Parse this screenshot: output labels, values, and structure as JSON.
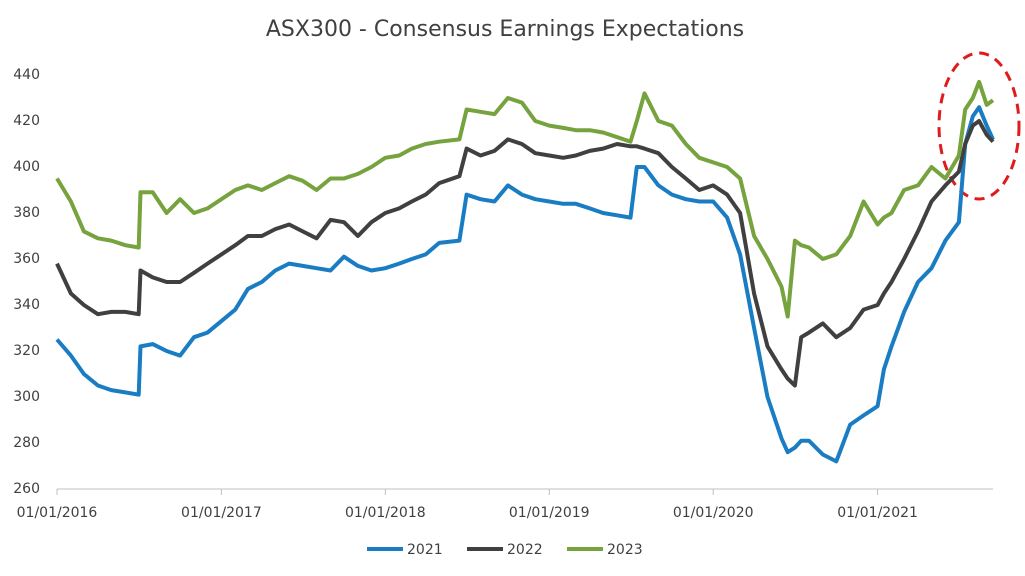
{
  "chart_data": {
    "type": "line",
    "title": "ASX300 - Consensus Earnings Expectations",
    "x": [
      "01/01/2016",
      "01/02/2016",
      "01/03/2016",
      "01/04/2016",
      "01/05/2016",
      "01/06/2016",
      "01/07/2016",
      "05/07/2016",
      "01/08/2016",
      "01/09/2016",
      "01/10/2016",
      "01/11/2016",
      "01/12/2016",
      "01/01/2017",
      "01/02/2017",
      "01/03/2017",
      "01/04/2017",
      "01/05/2017",
      "01/06/2017",
      "01/07/2017",
      "01/08/2017",
      "01/09/2017",
      "01/10/2017",
      "01/11/2017",
      "01/12/2017",
      "01/01/2018",
      "01/02/2018",
      "01/03/2018",
      "01/04/2018",
      "01/05/2018",
      "15/06/2018",
      "01/07/2018",
      "01/08/2018",
      "01/09/2018",
      "01/10/2018",
      "01/11/2018",
      "01/12/2018",
      "01/01/2019",
      "01/02/2019",
      "01/03/2019",
      "01/04/2019",
      "01/05/2019",
      "01/06/2019",
      "01/07/2019",
      "15/07/2019",
      "01/08/2019",
      "01/09/2019",
      "01/10/2019",
      "01/11/2019",
      "01/12/2019",
      "01/01/2020",
      "01/02/2020",
      "01/03/2020",
      "01/04/2020",
      "01/05/2020",
      "01/06/2020",
      "15/06/2020",
      "01/07/2020",
      "15/07/2020",
      "01/08/2020",
      "01/09/2020",
      "01/10/2020",
      "01/11/2020",
      "01/12/2020",
      "01/01/2021",
      "15/01/2021",
      "01/02/2021",
      "01/03/2021",
      "01/04/2021",
      "01/05/2021",
      "01/06/2021",
      "01/07/2021",
      "15/07/2021",
      "01/08/2021",
      "15/08/2021",
      "01/09/2021",
      "15/09/2021"
    ],
    "series": [
      {
        "name": "2021",
        "color": "#1a7dc4",
        "values": [
          325,
          318,
          310,
          305,
          303,
          302,
          301,
          322,
          323,
          320,
          318,
          326,
          328,
          333,
          338,
          347,
          350,
          355,
          358,
          357,
          356,
          355,
          361,
          357,
          355,
          356,
          358,
          360,
          362,
          367,
          368,
          388,
          386,
          385,
          392,
          388,
          386,
          385,
          384,
          384,
          382,
          380,
          379,
          378,
          400,
          400,
          392,
          388,
          386,
          385,
          385,
          378,
          362,
          330,
          300,
          282,
          276,
          278,
          281,
          281,
          275,
          272,
          288,
          292,
          296,
          312,
          322,
          337,
          350,
          356,
          368,
          376,
          410,
          422,
          426,
          418,
          412
        ]
      },
      {
        "name": "2022",
        "color": "#404040",
        "values": [
          358,
          345,
          340,
          336,
          337,
          337,
          336,
          355,
          352,
          350,
          350,
          354,
          358,
          362,
          366,
          370,
          370,
          373,
          375,
          372,
          369,
          377,
          376,
          370,
          376,
          380,
          382,
          385,
          388,
          393,
          396,
          408,
          405,
          407,
          412,
          410,
          406,
          405,
          404,
          405,
          407,
          408,
          410,
          409,
          409,
          408,
          406,
          400,
          395,
          390,
          392,
          388,
          380,
          345,
          322,
          312,
          308,
          305,
          326,
          328,
          332,
          326,
          330,
          338,
          340,
          345,
          350,
          360,
          372,
          385,
          392,
          398,
          410,
          418,
          420,
          414,
          411
        ]
      },
      {
        "name": "2023",
        "color": "#76a33e",
        "values": [
          395,
          385,
          372,
          369,
          368,
          366,
          365,
          389,
          389,
          380,
          386,
          380,
          382,
          386,
          390,
          392,
          390,
          393,
          396,
          394,
          390,
          395,
          395,
          397,
          400,
          404,
          405,
          408,
          410,
          411,
          412,
          425,
          424,
          423,
          430,
          428,
          420,
          418,
          417,
          416,
          416,
          415,
          413,
          411,
          420,
          432,
          420,
          418,
          410,
          404,
          402,
          400,
          395,
          370,
          360,
          348,
          335,
          368,
          366,
          365,
          360,
          362,
          370,
          385,
          375,
          378,
          380,
          390,
          392,
          400,
          395,
          405,
          425,
          430,
          437,
          427,
          429
        ]
      }
    ],
    "xlim": [
      "01/01/2016",
      "15/09/2021"
    ],
    "xticks": [
      "01/01/2016",
      "01/01/2017",
      "01/01/2018",
      "01/01/2019",
      "01/01/2020",
      "01/01/2021"
    ],
    "ylim": [
      260,
      440
    ],
    "yticks": [
      260,
      280,
      300,
      320,
      340,
      360,
      380,
      400,
      420,
      440
    ],
    "legend": "bottom"
  }
}
